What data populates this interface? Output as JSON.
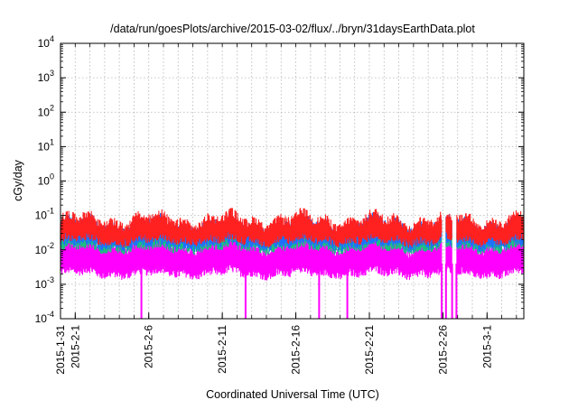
{
  "chart_data": {
    "type": "line",
    "title": "/data/run/goesPlots/archive/2015-03-02/flux/../bryn/31daysEarthData.plot",
    "xlabel": "Coordinated Universal Time (UTC)",
    "ylabel": "cGy/day",
    "yscale": "log",
    "ylim": [
      0.0001,
      10000
    ],
    "xlim": [
      "2015-01-31",
      "2015-03-03T12:00"
    ],
    "x_ticks": [
      "2015-1-31",
      "2015-2-1",
      "2015-2-6",
      "2015-2-11",
      "2015-2-16",
      "2015-2-21",
      "2015-2-26",
      "2015-3-1"
    ],
    "y_ticks": [
      {
        "base": "10",
        "exp": "-4"
      },
      {
        "base": "10",
        "exp": "-3"
      },
      {
        "base": "10",
        "exp": "-2"
      },
      {
        "base": "10",
        "exp": "-1"
      },
      {
        "base": "10",
        "exp": "0"
      },
      {
        "base": "10",
        "exp": "1"
      },
      {
        "base": "10",
        "exp": "2"
      },
      {
        "base": "10",
        "exp": "3"
      },
      {
        "base": "10",
        "exp": "4"
      }
    ],
    "grid": true,
    "colors": {
      "series_1": "#ff2020",
      "series_2": "#1e6fff",
      "series_3": "#19c080",
      "series_4": "#ff00ff"
    },
    "series": [
      {
        "color": "#ff2020",
        "typical_range": [
          0.02,
          0.06
        ]
      },
      {
        "color": "#1e6fff",
        "typical_range": [
          0.015,
          0.045
        ]
      },
      {
        "color": "#19c080",
        "typical_range": [
          0.012,
          0.025
        ]
      },
      {
        "color": "#ff00ff",
        "typical_range": [
          0.0022,
          0.012
        ],
        "dropouts": [
          "2015-02-05T12:00",
          "2015-02-12T14:00",
          "2015-02-17T14:00",
          "2015-02-19T12:00"
        ]
      }
    ],
    "data_gaps": [
      [
        "2015-02-25T22:00",
        "2015-02-26T05:00"
      ],
      [
        "2015-02-26T15:00",
        "2015-02-26T22:00"
      ]
    ]
  }
}
